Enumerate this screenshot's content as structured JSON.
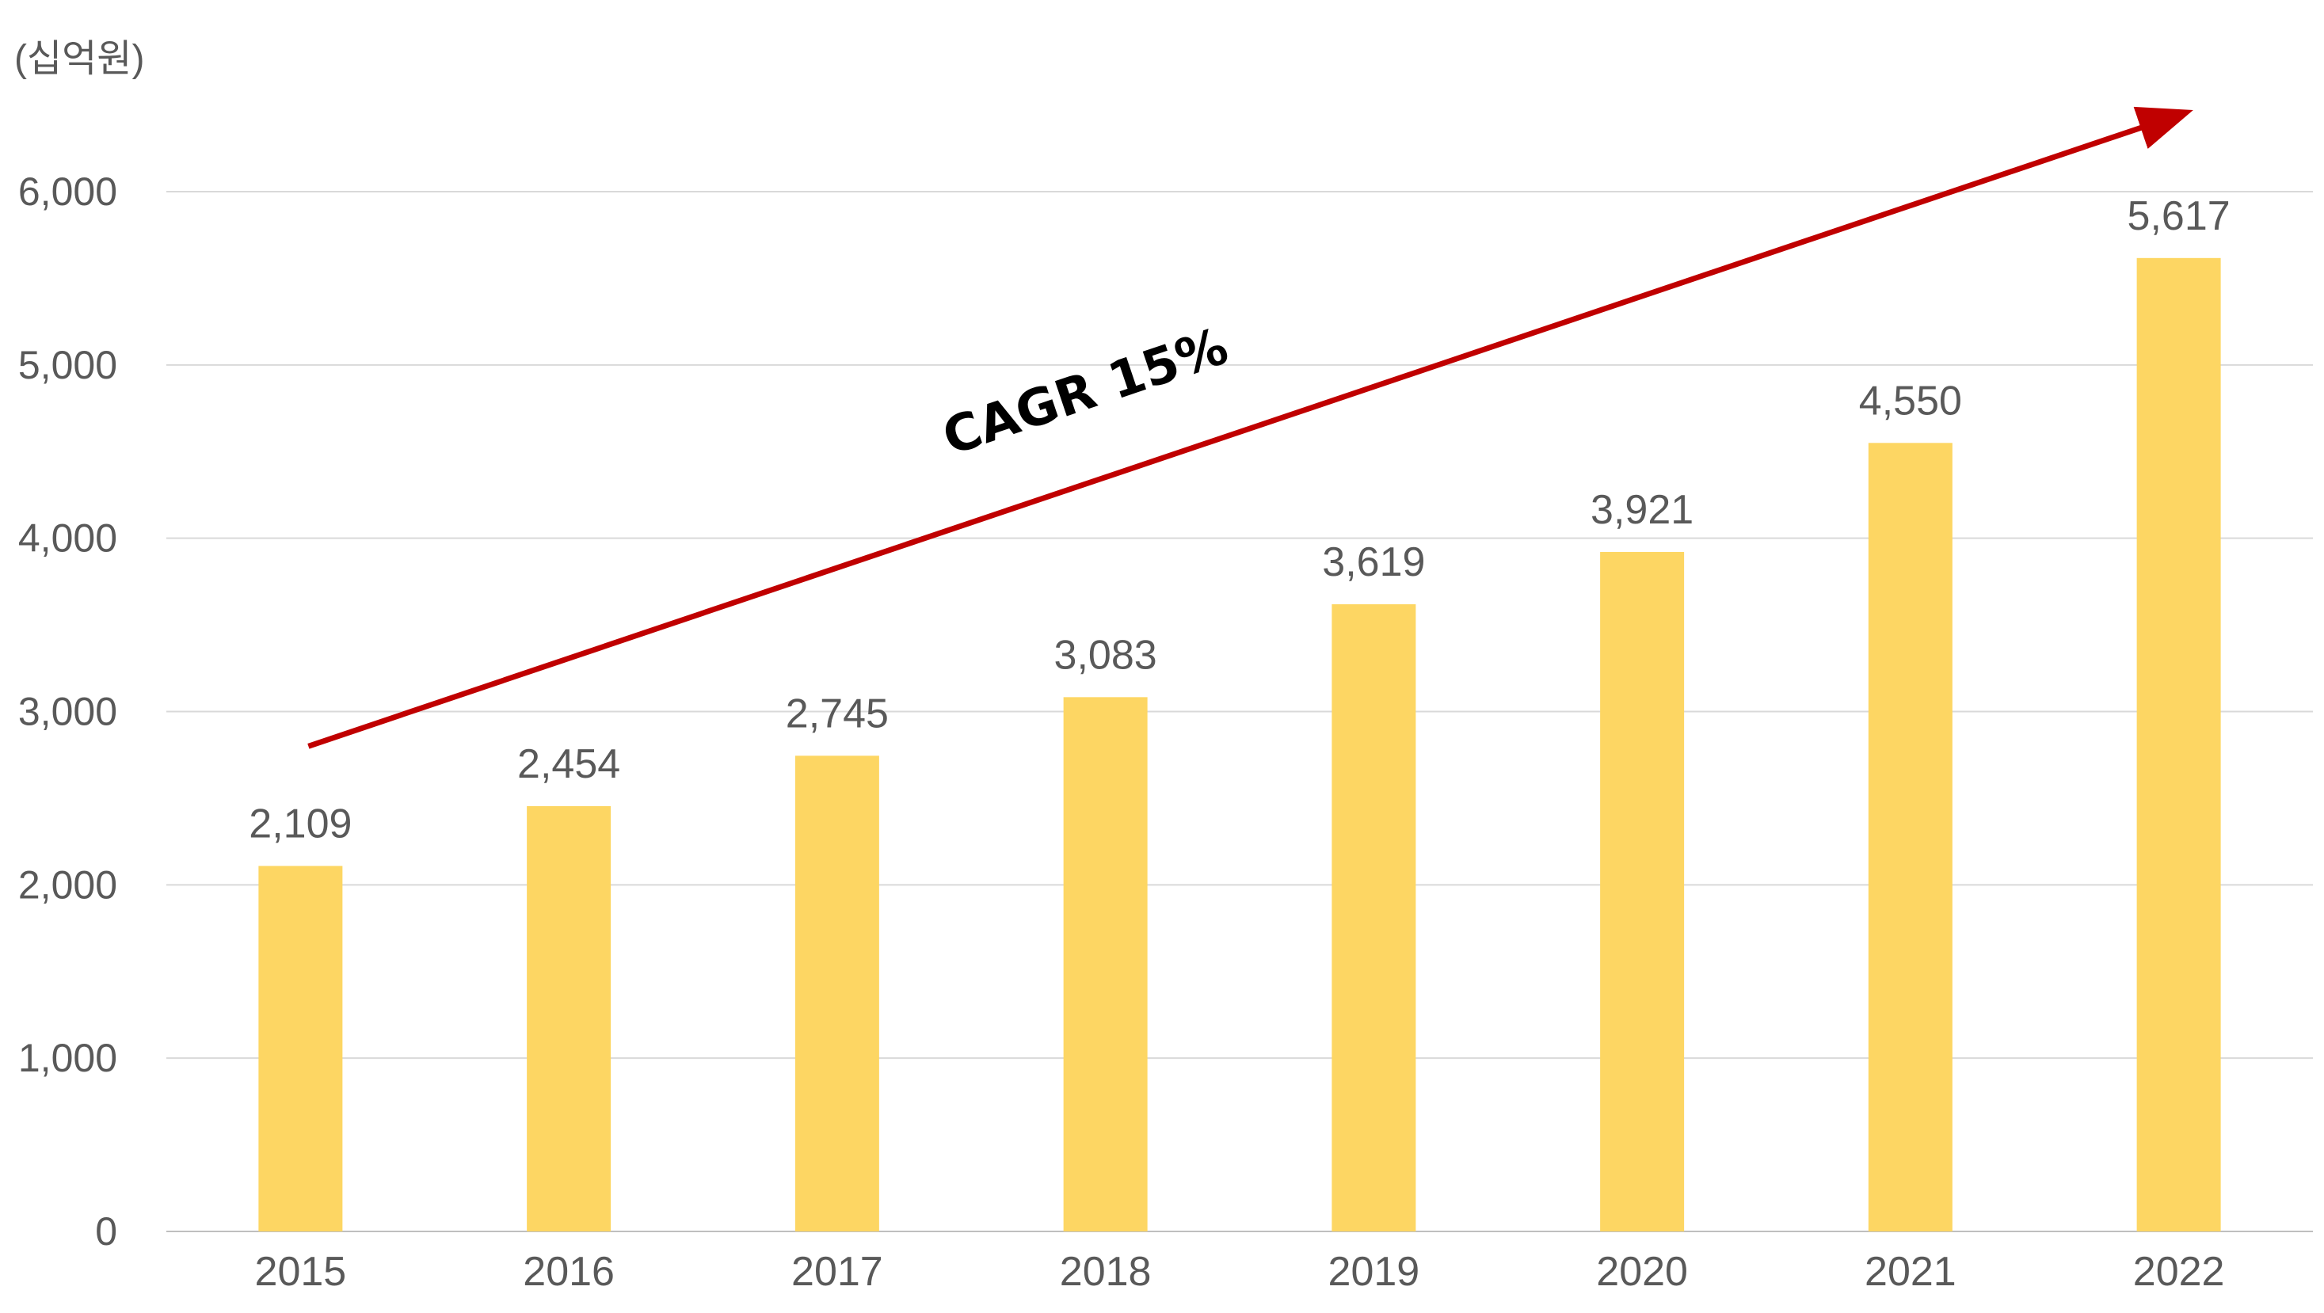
{
  "chart_data": {
    "type": "bar",
    "title": "",
    "unit_label": "(십억원)",
    "xlabel": "",
    "ylabel": "",
    "categories": [
      "2015",
      "2016",
      "2017",
      "2018",
      "2019",
      "2020",
      "2021",
      "2022"
    ],
    "values": [
      2109,
      2454,
      2745,
      3083,
      3619,
      3921,
      4550,
      5617
    ],
    "value_labels": [
      "2,109",
      "2,454",
      "2,745",
      "3,083",
      "3,619",
      "3,921",
      "4,550",
      "5,617"
    ],
    "ylim": [
      0,
      6000
    ],
    "yticks": [
      0,
      1000,
      2000,
      3000,
      4000,
      5000,
      6000
    ],
    "ytick_labels": [
      "0",
      "1,000",
      "2,000",
      "3,000",
      "4,000",
      "5,000",
      "6,000"
    ],
    "grid": true,
    "legend": "none",
    "annotation": {
      "text": "CAGR 15%",
      "type": "trend-arrow",
      "from_category": "2015",
      "to_category": "2022"
    },
    "colors": {
      "bar": "#FDD663",
      "grid": "#D9D9D9",
      "axis": "#BFBFBF",
      "arrow": "#C00000",
      "text": "#595959",
      "annotation_text": "#000000"
    }
  }
}
